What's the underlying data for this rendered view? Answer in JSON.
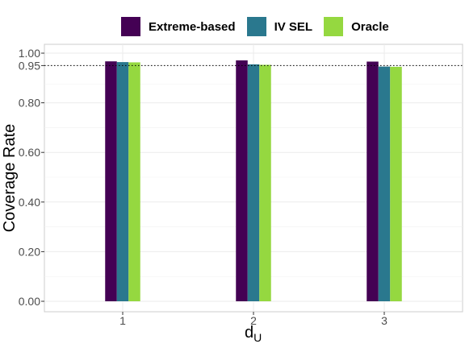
{
  "chart_data": {
    "type": "bar",
    "categories": [
      "1",
      "2",
      "3"
    ],
    "series": [
      {
        "name": "Extreme-based",
        "values": [
          0.967,
          0.971,
          0.966
        ],
        "color": "#440154"
      },
      {
        "name": "IV SEL",
        "values": [
          0.964,
          0.955,
          0.946
        ],
        "color": "#2a788e"
      },
      {
        "name": "Oracle",
        "values": [
          0.963,
          0.953,
          0.945
        ],
        "color": "#95d840"
      }
    ],
    "xlabel": "d",
    "xlabel_subscript": "U",
    "ylabel": "Coverage Rate",
    "ylim": [
      0,
      1.0
    ],
    "yticks": [
      "0.00",
      "0.20",
      "0.40",
      "0.60",
      "0.80",
      "0.95",
      "1.00"
    ],
    "ytick_values": [
      0,
      0.2,
      0.4,
      0.6,
      0.8,
      0.95,
      1.0
    ],
    "reference_line": 0.95,
    "reference_line_style": "dotted",
    "legend_position": "top",
    "grid": true
  }
}
